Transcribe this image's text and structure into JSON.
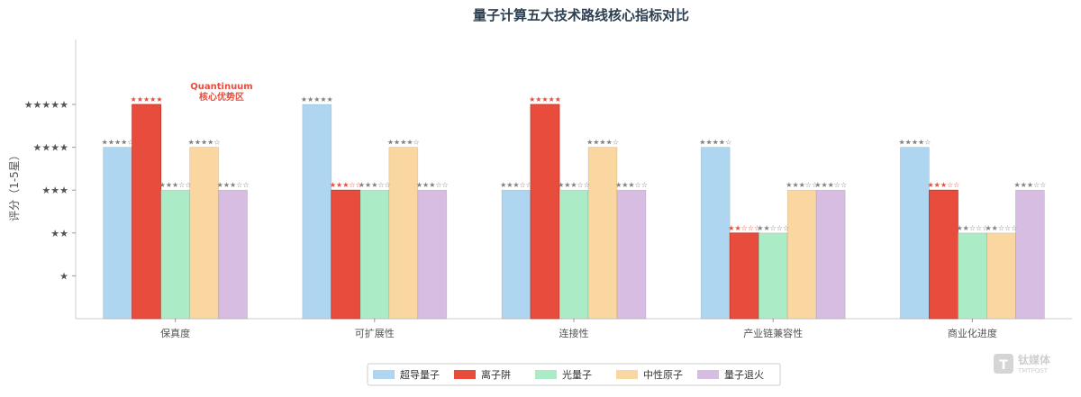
{
  "chart_data": {
    "type": "bar",
    "title": "量子计算五大技术路线核心指标对比",
    "ylabel": "评分（1-5星）",
    "xlabel": "",
    "ylim": [
      0,
      5
    ],
    "yticks": [
      1,
      2,
      3,
      4,
      5
    ],
    "ytick_labels": [
      "★",
      "★★",
      "★★★",
      "★★★★",
      "★★★★★"
    ],
    "grid": false,
    "legend_position": "bottom-center",
    "categories": [
      "保真度",
      "可扩展性",
      "连接性",
      "产业链兼容性",
      "商业化进度"
    ],
    "series": [
      {
        "name": "超导量子",
        "color": "#aed6f1",
        "values": [
          4,
          5,
          3,
          4,
          4
        ],
        "labels": [
          "★★★★☆",
          "★★★★★",
          "★★★☆☆",
          "★★★★☆",
          "★★★★☆"
        ]
      },
      {
        "name": "离子阱",
        "color": "#e74c3c",
        "values": [
          5,
          3,
          5,
          2,
          3
        ],
        "labels": [
          "★★★★★",
          "★★★☆☆",
          "★★★★★",
          "★★☆☆☆",
          "★★★☆☆"
        ]
      },
      {
        "name": "光量子",
        "color": "#abebc6",
        "values": [
          3,
          3,
          3,
          2,
          2
        ],
        "labels": [
          "★★★☆☆",
          "★★★☆☆",
          "★★★☆☆",
          "★★☆☆☆",
          "★★☆☆☆"
        ]
      },
      {
        "name": "中性原子",
        "color": "#fad7a0",
        "values": [
          4,
          4,
          4,
          3,
          2
        ],
        "labels": [
          "★★★★☆",
          "★★★★☆",
          "★★★★☆",
          "★★★☆☆",
          "★★☆☆☆"
        ]
      },
      {
        "name": "量子退火",
        "color": "#d7bde2",
        "values": [
          3,
          3,
          3,
          3,
          3
        ],
        "labels": [
          "★★★☆☆",
          "★★★☆☆",
          "★★★☆☆",
          "★★★☆☆",
          "★★★☆☆"
        ]
      }
    ],
    "annotation": {
      "lines": [
        "Quantinuum",
        "核心优势区"
      ],
      "color": "#e74c3c"
    }
  },
  "watermark": {
    "brand": "钛媒体",
    "sub": "TMTPOST"
  },
  "colors": {
    "highlight": "#e74c3c",
    "value_label": "#808080",
    "axis": "#cccccc",
    "title": "#2c3e50"
  }
}
